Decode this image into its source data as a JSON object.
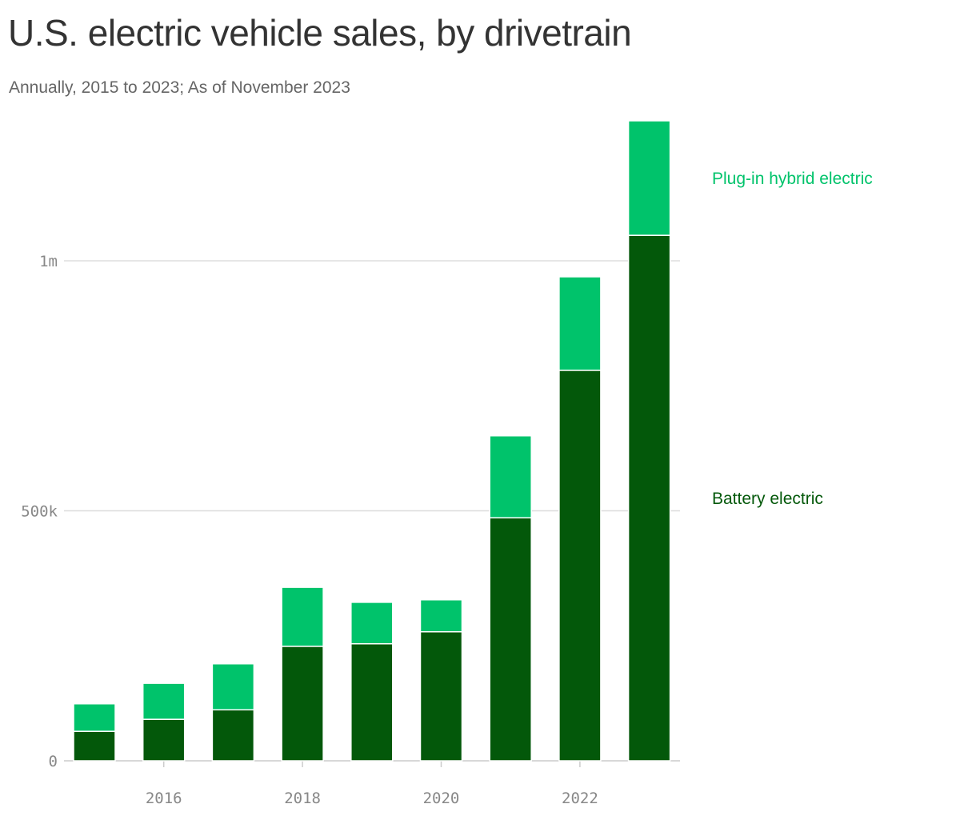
{
  "title": "U.S. electric vehicle sales, by drivetrain",
  "subtitle": "Annually, 2015 to 2023; As of November 2023",
  "chart_data": {
    "type": "bar",
    "stacked": true,
    "categories": [
      2015,
      2016,
      2017,
      2018,
      2019,
      2020,
      2021,
      2022,
      2023
    ],
    "series": [
      {
        "name": "Battery electric",
        "color": "#03580a",
        "values": [
          59000,
          83000,
          102000,
          229000,
          234000,
          258000,
          486000,
          781000,
          1051000
        ]
      },
      {
        "name": "Plug-in hybrid electric",
        "color": "#00c36b",
        "values": [
          55000,
          72000,
          92000,
          118000,
          83000,
          64000,
          164000,
          187000,
          229000
        ]
      }
    ],
    "ylim": [
      0,
      1300000
    ],
    "yticks": [
      {
        "value": 0,
        "label": "0"
      },
      {
        "value": 500000,
        "label": "500k"
      },
      {
        "value": 1000000,
        "label": "1m"
      }
    ],
    "xticks": [
      {
        "value": 2016,
        "label": "2016"
      },
      {
        "value": 2018,
        "label": "2018"
      },
      {
        "value": 2020,
        "label": "2020"
      },
      {
        "value": 2022,
        "label": "2022"
      }
    ],
    "grid": true,
    "legend": "right, inline labels"
  }
}
